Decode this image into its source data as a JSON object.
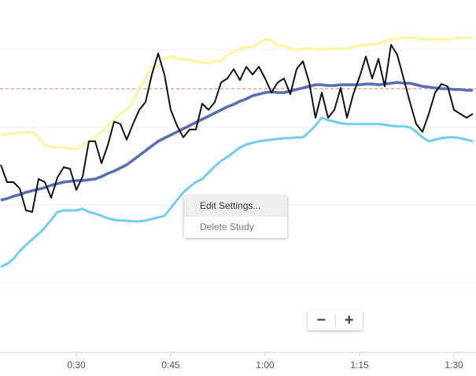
{
  "chart_data": {
    "type": "line",
    "x": [
      18,
      19,
      20,
      21,
      22,
      23,
      24,
      25,
      26,
      27,
      28,
      29,
      30,
      31,
      32,
      33,
      34,
      35,
      36,
      37,
      38,
      39,
      40,
      41,
      42,
      43,
      44,
      45,
      46,
      47,
      48,
      49,
      50,
      51,
      52,
      53,
      54,
      55,
      56,
      57,
      58,
      59,
      60,
      61,
      62,
      63,
      64,
      65,
      66,
      67,
      68,
      69,
      70,
      71,
      72,
      73,
      74,
      75,
      76,
      77,
      78,
      79,
      80,
      81,
      82,
      83,
      84,
      85,
      86,
      87,
      88,
      89,
      90,
      91,
      92,
      93
    ],
    "xlim": [
      17.875,
      93.5
    ],
    "xticks": [
      {
        "value": 30,
        "label": "0:30"
      },
      {
        "value": 45,
        "label": "0:45"
      },
      {
        "value": 60,
        "label": "1:00"
      },
      {
        "value": 75,
        "label": "1:15"
      },
      {
        "value": 90,
        "label": "1:30"
      }
    ],
    "ylim": [
      0,
      449
    ],
    "yticks": [
      89,
      188,
      287,
      386
    ],
    "grid": true,
    "ref_line": 336,
    "ref_line_color": "#e28b7c",
    "series": [
      {
        "color": "#fff59d",
        "width": 3,
        "values": [
          277,
          278,
          279,
          280,
          280,
          281,
          274,
          264,
          262,
          261,
          261,
          260,
          259,
          264,
          269,
          274,
          281,
          289,
          297,
          304,
          309,
          319,
          337,
          349,
          364,
          364,
          374,
          377,
          375,
          373,
          373,
          371,
          369,
          369,
          371,
          371,
          379,
          383,
          387,
          389,
          389,
          394,
          399,
          397,
          391,
          391,
          387,
          385,
          387,
          387,
          387,
          386,
          387,
          387,
          387,
          387,
          389,
          391,
          391,
          393,
          393,
          397,
          399,
          400,
          401,
          401,
          401,
          399,
          399,
          399,
          399,
          399,
          400,
          401,
          401,
          401
        ]
      },
      {
        "color": "#6fcdef",
        "width": 3,
        "values": [
          109,
          113,
          119,
          129,
          137,
          144,
          151,
          159,
          169,
          179,
          181,
          181,
          181,
          183,
          179,
          177,
          174,
          171,
          169,
          168,
          168,
          167,
          167,
          168,
          170,
          172,
          174,
          184,
          194,
          204,
          211,
          217,
          221,
          229,
          237,
          244,
          249,
          255,
          261,
          265,
          267,
          269,
          270,
          271,
          272,
          273,
          273,
          274,
          274,
          281,
          289,
          299,
          296,
          294,
          292,
          291,
          291,
          291,
          291,
          291,
          291,
          290,
          289,
          288,
          288,
          287,
          281,
          274,
          269,
          271,
          273,
          274,
          274,
          273,
          271,
          269
        ]
      },
      {
        "color": "#5a6db3",
        "width": 3.5,
        "values": [
          194,
          196,
          199,
          201,
          204,
          206,
          208,
          210,
          213,
          215,
          217,
          218,
          219,
          219,
          220,
          221,
          224,
          228,
          231,
          235,
          239,
          245,
          251,
          257,
          263,
          269,
          273,
          277,
          281,
          285,
          289,
          293,
          297,
          301,
          305,
          309,
          313,
          316,
          320,
          323,
          327,
          329,
          331,
          332,
          331,
          331,
          333,
          335,
          337,
          339,
          341,
          341,
          340,
          340,
          341,
          341,
          341,
          341,
          342,
          342,
          341,
          342,
          343,
          344,
          343,
          343,
          341,
          339,
          338,
          337,
          336,
          336,
          335,
          335,
          334,
          334
        ]
      },
      {
        "color": "#111111",
        "width": 2,
        "values": [
          239,
          217,
          217,
          209,
          181,
          179,
          221,
          217,
          197,
          223,
          236,
          234,
          207,
          224,
          269,
          269,
          241,
          264,
          294,
          291,
          271,
          291,
          309,
          319,
          354,
          381,
          354,
          309,
          289,
          274,
          284,
          284,
          317,
          309,
          319,
          344,
          349,
          361,
          347,
          364,
          354,
          364,
          349,
          331,
          344,
          349,
          329,
          361,
          371,
          344,
          299,
          331,
          299,
          309,
          337,
          299,
          329,
          351,
          377,
          349,
          374,
          339,
          392,
          379,
          349,
          319,
          291,
          281,
          304,
          331,
          342,
          339,
          309,
          304,
          299,
          304
        ]
      }
    ]
  },
  "context_menu": {
    "items": [
      "Edit Settings...",
      "Delete Study"
    ]
  },
  "zoom_controls": {
    "minus": "−",
    "plus": "+"
  }
}
